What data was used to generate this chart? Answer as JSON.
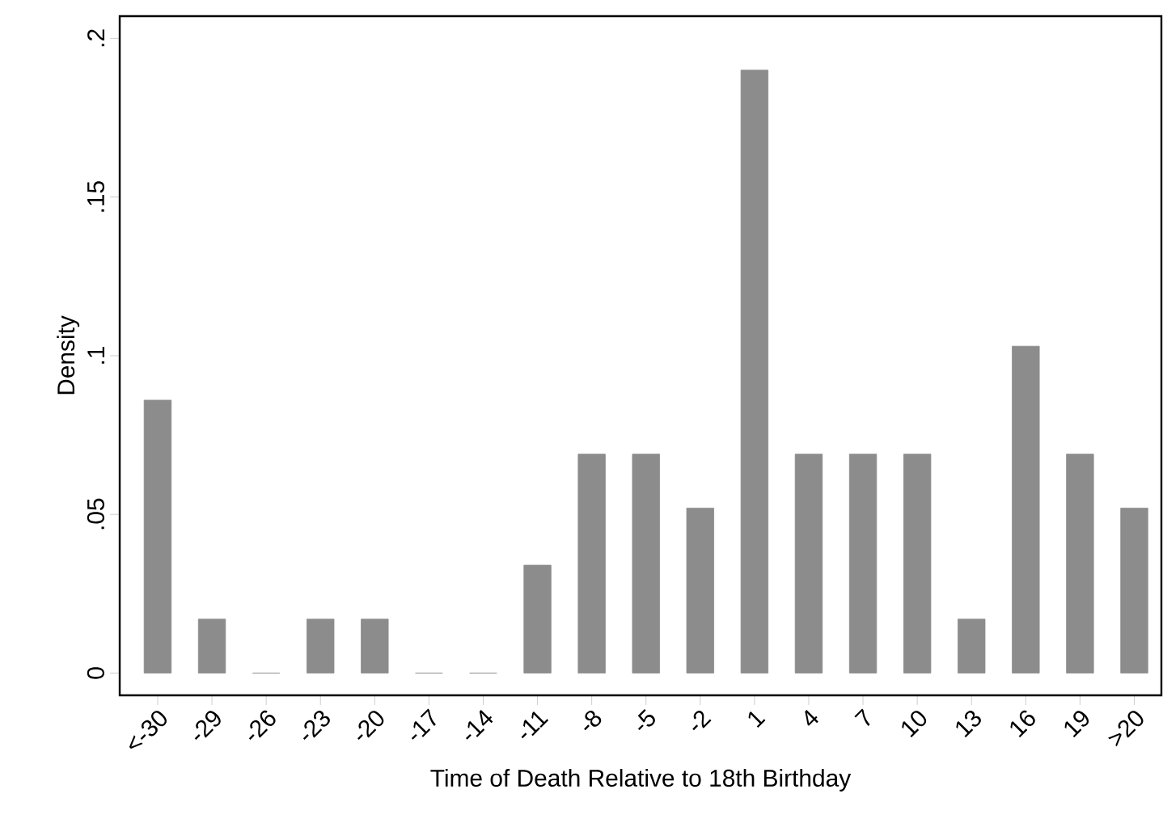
{
  "chart_data": {
    "type": "bar",
    "xlabel": "Time of Death Relative to 18th Birthday",
    "ylabel": "Density",
    "categories": [
      "<-30",
      "-29",
      "-26",
      "-23",
      "-20",
      "-17",
      "-14",
      "-11",
      "-8",
      "-5",
      "-2",
      "1",
      "4",
      "7",
      "10",
      "13",
      "16",
      "19",
      ">20"
    ],
    "values": [
      0.086,
      0.017,
      0,
      0.017,
      0.017,
      0,
      0,
      0.034,
      0.069,
      0.069,
      0.052,
      0.19,
      0.069,
      0.069,
      0.069,
      0.017,
      0.103,
      0.069,
      0.052
    ],
    "color": "#8c8c8c",
    "ylim": [
      -0.007,
      0.207
    ],
    "yticks": [
      0,
      {
        "value": 0.05,
        "label": ".05"
      },
      {
        "value": 0.1,
        "label": ".1"
      },
      {
        "value": 0.15,
        "label": ".15"
      },
      {
        "value": 0.2,
        "label": ".2"
      }
    ],
    "grid": false
  }
}
